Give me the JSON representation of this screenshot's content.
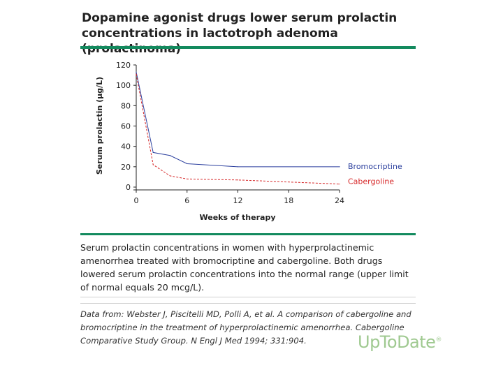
{
  "header": {
    "title": "Dopamine agonist drugs lower serum prolactin concentrations in lactotroph adenoma (prolactinoma)"
  },
  "chart_data": {
    "type": "line",
    "title": "",
    "xlabel": "Weeks of therapy",
    "ylabel": "Serum prolactin (µg/L)",
    "xlim": [
      0,
      24
    ],
    "ylim": [
      0,
      120
    ],
    "xticks": [
      0,
      6,
      12,
      18,
      24
    ],
    "yticks": [
      0,
      20,
      40,
      60,
      80,
      100,
      120
    ],
    "grid": false,
    "series": [
      {
        "name": "Bromocriptine",
        "style": "solid",
        "color": "#2b3f9e",
        "x": [
          0,
          2,
          4,
          6,
          12,
          24
        ],
        "y": [
          113,
          34,
          31,
          23,
          20,
          20
        ]
      },
      {
        "name": "Cabergoline",
        "style": "dashed",
        "color": "#d62728",
        "x": [
          0,
          2,
          4,
          6,
          12,
          24
        ],
        "y": [
          111,
          22,
          11,
          8,
          7,
          3
        ]
      }
    ]
  },
  "caption": {
    "text": "Serum prolactin concentrations in women with hyperprolactinemic amenorrhea treated with bromocriptine and cabergoline. Both drugs lowered serum prolactin concentrations into the normal range (upper limit of normal equals 20 mcg/L)."
  },
  "source": {
    "text": "Data from: Webster J, Piscitelli MD, Polli A, et al. A comparison of cabergoline and bromocriptine in the treatment of hyperprolactinemic amenorrhea. Cabergoline Comparative Study Group. N Engl J Med 1994; 331:904."
  },
  "brand": {
    "name": "UpToDate",
    "mark": "®"
  }
}
